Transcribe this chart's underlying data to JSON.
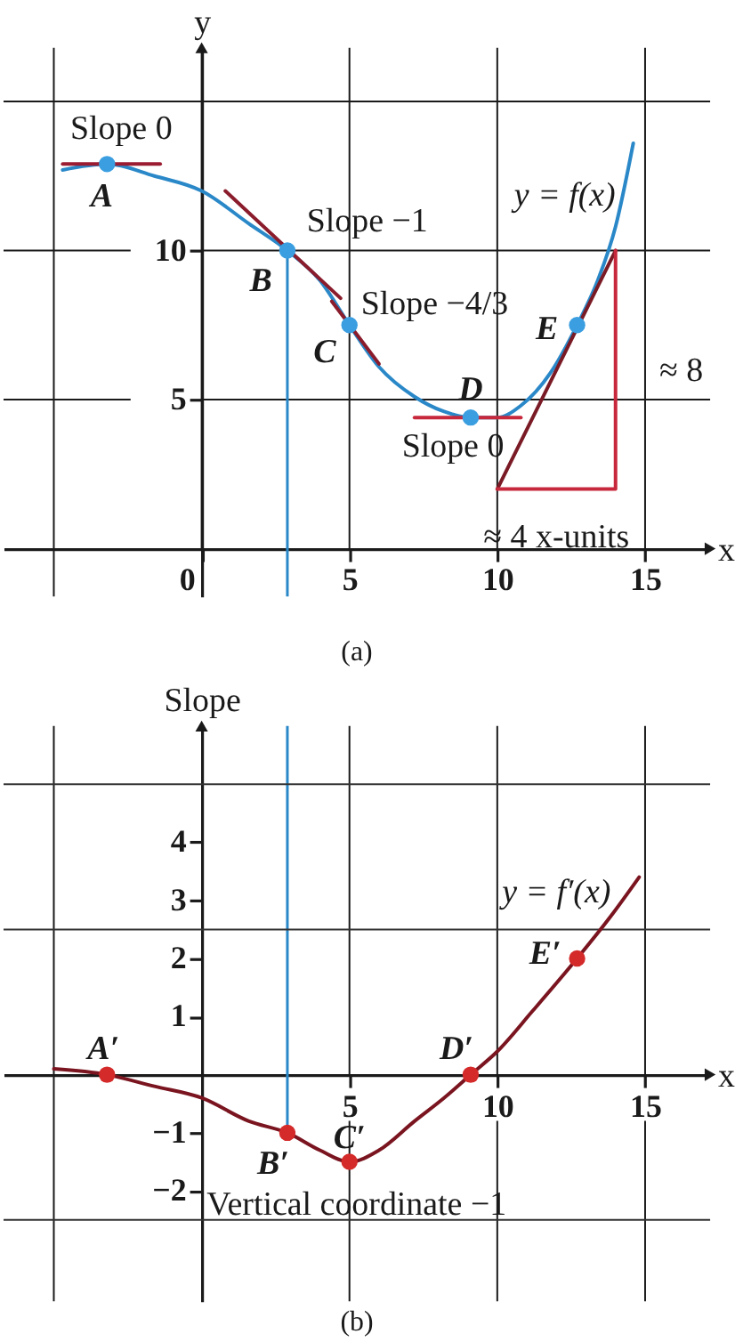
{
  "chart_data": [
    {
      "type": "line",
      "title": "(a)",
      "xlabel": "x",
      "ylabel": "y",
      "xlim": [
        -6.7,
        17.2
      ],
      "ylim": [
        -1.6,
        16.8
      ],
      "xticks": [
        0,
        5,
        10,
        15
      ],
      "yticks": [
        5,
        10
      ],
      "grid": true,
      "series": [
        {
          "name": "y = f(x)",
          "color": "#2a88c8",
          "x": [
            -4.7,
            -3.2,
            -1.6,
            0,
            1.6,
            2.9,
            4,
            5,
            6,
            7.2,
            8.2,
            9.1,
            10,
            10.8,
            11.8,
            12.7,
            13.4,
            14,
            14.6
          ],
          "values": [
            12.7,
            12.9,
            12.5,
            12.0,
            10.9,
            10.0,
            9.0,
            7.5,
            6.1,
            5.1,
            4.6,
            4.4,
            4.4,
            4.8,
            5.9,
            7.5,
            9.0,
            10.8,
            13.6
          ]
        },
        {
          "color": "#9b1b30",
          "x": [
            -4.7,
            -1.4
          ],
          "values": [
            12.9,
            12.9
          ]
        },
        {
          "color": "#8a1c2c",
          "x": [
            0.8,
            4.7
          ],
          "values": [
            12.0,
            8.4
          ]
        },
        {
          "color": "#8a1c2c",
          "x": [
            4.4,
            6.0
          ],
          "values": [
            8.3,
            6.2
          ]
        },
        {
          "color": "#c8283c",
          "x": [
            7.2,
            10.8
          ],
          "values": [
            4.4,
            4.4
          ]
        },
        {
          "color": "#7a1a25",
          "x": [
            10,
            14
          ],
          "values": [
            2,
            10
          ]
        },
        {
          "color": "#c8283c",
          "x": [
            10,
            14,
            14
          ],
          "values": [
            2,
            2,
            10
          ]
        },
        {
          "type": "scatter",
          "marker": "circle",
          "color": "#3a9ee0",
          "x": [
            -3.2,
            2.9,
            5,
            9.1,
            12.7
          ],
          "values": [
            12.9,
            10,
            7.5,
            4.4,
            7.5
          ]
        }
      ],
      "ref_lines": [
        {
          "axis": "x",
          "value": 2.9,
          "color": "#2a88c8"
        },
        {
          "axis": "x",
          "value": -5,
          "color": "#1a1a1a"
        },
        {
          "axis": "y",
          "value": 15,
          "color": "#1a1a1a"
        }
      ],
      "annotations": [
        {
          "text": "Slope 0",
          "x": -3.2,
          "y": 12.9
        },
        {
          "text": "A",
          "x": -3.2,
          "y": 12.9
        },
        {
          "text": "Slope −1",
          "x": 2.9,
          "y": 10
        },
        {
          "text": "B",
          "x": 2.9,
          "y": 10
        },
        {
          "text": "Slope −4/3",
          "x": 5,
          "y": 7.5
        },
        {
          "text": "C",
          "x": 5,
          "y": 7.5
        },
        {
          "text": "D",
          "x": 9.1,
          "y": 4.4
        },
        {
          "text": "Slope 0",
          "x": 9.1,
          "y": 4.4
        },
        {
          "text": "E",
          "x": 12.7,
          "y": 7.5
        },
        {
          "text": "≈ 8",
          "x": 14,
          "y": 6
        },
        {
          "text": "≈ 4 x-units",
          "x": 12,
          "y": 2
        }
      ]
    },
    {
      "type": "line",
      "title": "(b)",
      "ylabel": "Slope",
      "xlabel": "x",
      "xlim": [
        -6.7,
        17.2
      ],
      "ylim": [
        -3.9,
        6.0
      ],
      "xticks": [
        5,
        10,
        15
      ],
      "yticks": [
        -2,
        -1,
        1,
        2,
        3,
        4
      ],
      "grid": "x",
      "series": [
        {
          "name": "y = f′(x)",
          "color": "#7a1520",
          "x": [
            -5,
            -3.2,
            -1.6,
            0,
            1.6,
            2.9,
            4,
            5,
            6,
            7.2,
            8.2,
            9.1,
            10,
            11.2,
            12.7,
            13.8,
            14.8
          ],
          "values": [
            0.1,
            0,
            -0.2,
            -0.4,
            -0.8,
            -1.0,
            -1.3,
            -1.5,
            -1.3,
            -0.8,
            -0.4,
            0,
            0.4,
            1.1,
            2.0,
            2.7,
            3.4
          ]
        },
        {
          "type": "scatter",
          "marker": "circle",
          "color": "#d42a2a",
          "x": [
            -3.2,
            2.9,
            5,
            9.1,
            12.7
          ],
          "values": [
            0,
            -1,
            -1.5,
            0,
            2
          ]
        }
      ],
      "ref_lines": [
        {
          "axis": "x",
          "value": 2.9,
          "color": "#2a88c8"
        },
        {
          "axis": "x",
          "value": -5,
          "color": "#1a1a1a"
        },
        {
          "axis": "y",
          "value": -2.5,
          "color": "#333333"
        },
        {
          "axis": "y",
          "value": 2.5,
          "color": "#333333"
        },
        {
          "axis": "y",
          "value": 5,
          "color": "#333333"
        }
      ],
      "annotations": [
        {
          "text": "A′",
          "x": -3.2,
          "y": 0
        },
        {
          "text": "B′",
          "x": 2.9,
          "y": -1
        },
        {
          "text": "C′",
          "x": 5,
          "y": -1.5
        },
        {
          "text": "D′",
          "x": 9.1,
          "y": 0
        },
        {
          "text": "E′",
          "x": 12.7,
          "y": 2
        },
        {
          "text": "Vertical coordinate −1",
          "x": 2.9,
          "y": -1
        }
      ]
    }
  ]
}
